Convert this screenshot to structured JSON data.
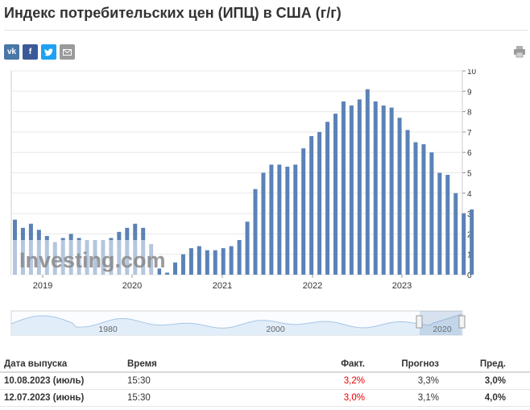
{
  "page": {
    "title": "Индекс потребительских цен (ИПЦ) в США (г/г)"
  },
  "share": {
    "buttons": [
      {
        "name": "vk-button",
        "label": "vk",
        "color": "#4a76a8"
      },
      {
        "name": "facebook-button",
        "label": "f",
        "color": "#3b5998"
      },
      {
        "name": "twitter-button",
        "label": "t",
        "color": "#1da1f2"
      },
      {
        "name": "email-button",
        "label": "✉",
        "color": "#9a9a9a"
      }
    ],
    "print_icon": "printer-icon"
  },
  "colors": {
    "bar": "#5b82b6",
    "bar_light": "#b5c9e2",
    "navigator_line": "#a8c6e8",
    "navigator_fill": "#dbe8f6",
    "grid": "#e8e8e8"
  },
  "chart_data": {
    "type": "bar",
    "ylim": [
      0,
      10
    ],
    "yticks": [
      "0",
      "1",
      "2",
      "3",
      "4",
      "5",
      "6",
      "7",
      "8",
      "9",
      "10"
    ],
    "xticks": [
      "2019",
      "2020",
      "2021",
      "2022",
      "2023"
    ],
    "grid": true,
    "watermark": "Investing.com",
    "series": [
      {
        "values": [
          2.7,
          2.3,
          2.5,
          2.2,
          1.9,
          1.6,
          1.8,
          2.0,
          1.8,
          1.7,
          1.7,
          1.7,
          1.8,
          2.1,
          2.3,
          2.5,
          2.3,
          1.5,
          0.3,
          0.1,
          0.6,
          1.0,
          1.3,
          1.4,
          1.2,
          1.2,
          1.3,
          1.4,
          1.7,
          2.6,
          4.2,
          5.0,
          5.4,
          5.4,
          5.3,
          5.4,
          6.2,
          6.8,
          7.0,
          7.5,
          7.9,
          8.5,
          8.3,
          8.6,
          9.1,
          8.5,
          8.3,
          8.2,
          7.7,
          7.1,
          6.5,
          6.4,
          6.0,
          5.0,
          4.9,
          4.0,
          3.0,
          3.2
        ]
      }
    ],
    "navigator": {
      "labels": [
        "1980",
        "2000",
        "2020"
      ]
    }
  },
  "table": {
    "headers": [
      "Дата выпуска",
      "Время",
      "Факт.",
      "Прогноз",
      "Пред."
    ],
    "rows": [
      {
        "date": "10.08.2023 (июль)",
        "time": "15:30",
        "actual": "3,2%",
        "forecast": "3,3%",
        "previous": "3,0%"
      },
      {
        "date": "12.07.2023 (июнь)",
        "time": "15:30",
        "actual": "3,0%",
        "forecast": "3,1%",
        "previous": "4,0%"
      }
    ]
  }
}
